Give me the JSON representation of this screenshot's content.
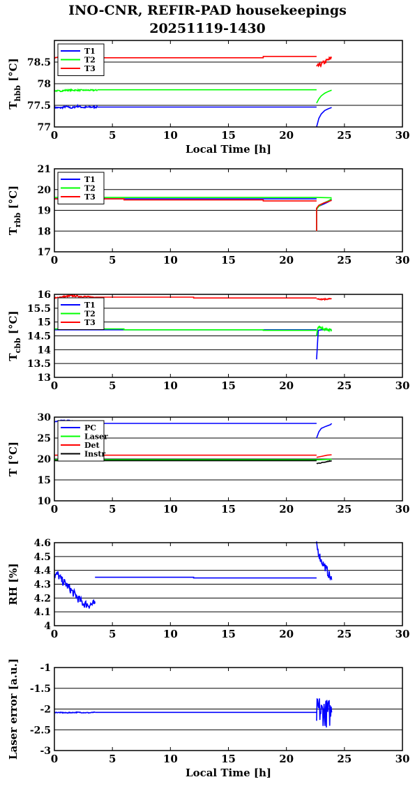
{
  "title_line1": "INO-CNR, REFIR-PAD housekeepings",
  "title_line2": "20251119-1430",
  "colors": {
    "blue": "#0000ff",
    "green": "#00ff00",
    "red": "#ff0000",
    "black": "#000000"
  },
  "chart_data": [
    {
      "type": "line",
      "xlabel": "Local Time [h]",
      "ylabel": "T_hbb [°C]",
      "ylabel_main": "T",
      "ylabel_sub": "hbb",
      "ylabel_unit": " [°C]",
      "xlim": [
        0,
        30
      ],
      "ylim": [
        77,
        79
      ],
      "xticks": [
        "0",
        "5",
        "10",
        "15",
        "20",
        "25",
        "30"
      ],
      "yticks": [
        "77",
        "77.5",
        "78",
        "78.5"
      ],
      "ytick_values": [
        77,
        77.5,
        78,
        78.5
      ],
      "grid": "horizontal",
      "legend": "top-left",
      "series": [
        {
          "name": "T1",
          "color": "#0000ff",
          "segments": [
            {
              "x": [
                0,
                0.5,
                1,
                1.5,
                2,
                2.5,
                3,
                3.5,
                3.7
              ],
              "y": [
                77.45,
                77.44,
                77.47,
                77.44,
                77.48,
                77.45,
                77.46,
                77.46,
                77.46
              ],
              "noise": 0.02
            },
            {
              "x": [
                3.7,
                22.6
              ],
              "y": [
                77.46,
                77.46
              ]
            },
            {
              "x": [
                22.6,
                22.8,
                23.0,
                23.3,
                23.6,
                23.9
              ],
              "y": [
                77.0,
                77.2,
                77.3,
                77.38,
                77.42,
                77.45
              ]
            }
          ]
        },
        {
          "name": "T2",
          "color": "#00ff00",
          "segments": [
            {
              "x": [
                0,
                0.5,
                1,
                2,
                3,
                3.7
              ],
              "y": [
                77.84,
                77.83,
                77.85,
                77.85,
                77.85,
                77.85
              ],
              "noise": 0.015
            },
            {
              "x": [
                3.7,
                22.6
              ],
              "y": [
                77.86,
                77.86
              ]
            },
            {
              "x": [
                22.6,
                22.8,
                23.0,
                23.3,
                23.6,
                23.9
              ],
              "y": [
                77.55,
                77.65,
                77.72,
                77.78,
                77.82,
                77.85
              ]
            }
          ]
        },
        {
          "name": "T3",
          "color": "#ff0000",
          "segments": [
            {
              "x": [
                0,
                1,
                2,
                3,
                3.7
              ],
              "y": [
                78.6,
                78.62,
                78.61,
                78.63,
                78.62
              ],
              "noise": 0.015
            },
            {
              "x": [
                3.7,
                18,
                18,
                22.6
              ],
              "y": [
                78.6,
                78.6,
                78.63,
                78.63
              ]
            },
            {
              "x": [
                22.6,
                22.8,
                23.0,
                23.3,
                23.6,
                23.9
              ],
              "y": [
                78.38,
                78.42,
                78.45,
                78.5,
                78.55,
                78.6
              ],
              "noise": 0.05
            }
          ]
        }
      ]
    },
    {
      "type": "line",
      "xlabel": "",
      "ylabel": "T_rbb [°C]",
      "ylabel_main": "T",
      "ylabel_sub": "rbb",
      "ylabel_unit": " [°C]",
      "xlim": [
        0,
        30
      ],
      "ylim": [
        17,
        21
      ],
      "xticks": [
        "0",
        "5",
        "10",
        "15",
        "20",
        "25",
        "30"
      ],
      "yticks": [
        "17",
        "18",
        "19",
        "20",
        "21"
      ],
      "ytick_values": [
        17,
        18,
        19,
        20,
        21
      ],
      "grid": "horizontal",
      "legend": "top-left",
      "series": [
        {
          "name": "T1",
          "color": "#0000ff",
          "segments": [
            {
              "x": [
                0,
                22.6
              ],
              "y": [
                19.55,
                19.55
              ]
            },
            {
              "x": [
                22.6,
                22.6,
                22.8,
                23.2,
                23.6,
                23.9
              ],
              "y": [
                18.0,
                19.1,
                19.2,
                19.3,
                19.4,
                19.5
              ]
            }
          ]
        },
        {
          "name": "T2",
          "color": "#00ff00",
          "segments": [
            {
              "x": [
                0,
                22.6,
                23.9
              ],
              "y": [
                19.62,
                19.62,
                19.6
              ]
            },
            {
              "x": [
                22.6,
                22.6,
                22.8,
                23.2,
                23.6,
                23.9
              ],
              "y": [
                18.0,
                19.05,
                19.2,
                19.35,
                19.45,
                19.55
              ]
            }
          ]
        },
        {
          "name": "T3",
          "color": "#ff0000",
          "segments": [
            {
              "x": [
                0,
                6,
                6,
                18,
                18,
                22.6
              ],
              "y": [
                19.55,
                19.55,
                19.5,
                19.5,
                19.45,
                19.45
              ]
            },
            {
              "x": [
                22.6,
                22.6,
                22.8,
                23.2,
                23.6,
                23.9
              ],
              "y": [
                18.0,
                19.1,
                19.25,
                19.35,
                19.42,
                19.48
              ]
            }
          ]
        }
      ]
    },
    {
      "type": "line",
      "xlabel": "",
      "ylabel": "T_cbb [°C]",
      "ylabel_main": "T",
      "ylabel_sub": "cbb",
      "ylabel_unit": " [°C]",
      "xlim": [
        0,
        30
      ],
      "ylim": [
        13,
        16
      ],
      "xticks": [
        "0",
        "5",
        "10",
        "15",
        "20",
        "25",
        "30"
      ],
      "yticks": [
        "13",
        "13.5",
        "14",
        "14.5",
        "15",
        "15.5",
        "16"
      ],
      "ytick_values": [
        13,
        13.5,
        14,
        14.5,
        15,
        15.5,
        16
      ],
      "grid": "horizontal",
      "legend": "top-left",
      "series": [
        {
          "name": "T1",
          "color": "#0000ff",
          "segments": [
            {
              "x": [
                0,
                22.6
              ],
              "y": [
                14.72,
                14.72
              ]
            },
            {
              "x": [
                22.6,
                22.7,
                22.75,
                23.0,
                23.5,
                23.9
              ],
              "y": [
                13.65,
                14.4,
                14.7,
                14.72,
                14.72,
                14.72
              ]
            }
          ]
        },
        {
          "name": "T2",
          "color": "#00ff00",
          "segments": [
            {
              "x": [
                0,
                6,
                6,
                12,
                12,
                18,
                18,
                22.6
              ],
              "y": [
                14.75,
                14.75,
                14.72,
                14.72,
                14.72,
                14.72,
                14.7,
                14.7
              ]
            },
            {
              "x": [
                22.6,
                22.7,
                22.8,
                23.2,
                23.6,
                23.9
              ],
              "y": [
                14.5,
                14.8,
                14.82,
                14.75,
                14.72,
                14.72
              ],
              "noise": 0.04
            }
          ]
        },
        {
          "name": "T3",
          "color": "#ff0000",
          "segments": [
            {
              "x": [
                0,
                0.5,
                1,
                1.5,
                2,
                2.5,
                3,
                3.5
              ],
              "y": [
                15.85,
                15.9,
                15.92,
                15.95,
                15.93,
                15.92,
                15.9,
                15.9
              ],
              "noise": 0.03
            },
            {
              "x": [
                3.5,
                12,
                12,
                22.6
              ],
              "y": [
                15.9,
                15.9,
                15.87,
                15.87
              ]
            },
            {
              "x": [
                22.6,
                23.0,
                23.5,
                23.9
              ],
              "y": [
                15.85,
                15.82,
                15.83,
                15.85
              ],
              "noise": 0.02
            }
          ]
        }
      ]
    },
    {
      "type": "line",
      "xlabel": "",
      "ylabel": "T [°C]",
      "ylabel_main": "T [°C]",
      "ylabel_sub": "",
      "ylabel_unit": "",
      "xlim": [
        0,
        30
      ],
      "ylim": [
        10,
        30
      ],
      "xticks": [
        "0",
        "5",
        "10",
        "15",
        "20",
        "25",
        "30"
      ],
      "yticks": [
        "10",
        "15",
        "20",
        "25",
        "30"
      ],
      "ytick_values": [
        10,
        15,
        20,
        25,
        30
      ],
      "grid": "horizontal",
      "legend": "top-left",
      "series": [
        {
          "name": "PC",
          "color": "#0000ff",
          "segments": [
            {
              "x": [
                0,
                0.5,
                1,
                1.5,
                2
              ],
              "y": [
                28.8,
                29.1,
                29.2,
                29.1,
                28.9
              ],
              "noise": 0.15
            },
            {
              "x": [
                2,
                22.6
              ],
              "y": [
                28.5,
                28.5
              ]
            },
            {
              "x": [
                22.6,
                22.8,
                23.0,
                23.4,
                23.8,
                23.9
              ],
              "y": [
                25.0,
                26.5,
                27.3,
                27.8,
                28.2,
                28.5
              ]
            }
          ]
        },
        {
          "name": "Laser",
          "color": "#00ff00",
          "segments": [
            {
              "x": [
                0,
                22.6,
                23.9
              ],
              "y": [
                19.8,
                19.8,
                19.9
              ]
            }
          ]
        },
        {
          "name": "Det",
          "color": "#ff0000",
          "segments": [
            {
              "x": [
                0,
                22.6
              ],
              "y": [
                20.9,
                20.9
              ]
            },
            {
              "x": [
                22.6,
                23.0,
                23.5,
                23.9
              ],
              "y": [
                20.4,
                20.6,
                20.9,
                21.0
              ]
            }
          ]
        },
        {
          "name": "Instr",
          "color": "#000000",
          "segments": [
            {
              "x": [
                0,
                22.6
              ],
              "y": [
                19.6,
                19.6
              ]
            },
            {
              "x": [
                22.6,
                23.0,
                23.5,
                23.9
              ],
              "y": [
                18.9,
                19.1,
                19.4,
                19.6
              ],
              "noise": 0.1
            }
          ]
        }
      ]
    },
    {
      "type": "line",
      "xlabel": "",
      "ylabel": "RH [%]",
      "ylabel_main": "RH [%]",
      "ylabel_sub": "",
      "ylabel_unit": "",
      "xlim": [
        0,
        30
      ],
      "ylim": [
        4,
        4.6
      ],
      "xticks": [
        "0",
        "5",
        "10",
        "15",
        "20",
        "25",
        "30"
      ],
      "yticks": [
        "4",
        "4.1",
        "4.2",
        "4.3",
        "4.4",
        "4.5",
        "4.6"
      ],
      "ytick_values": [
        4,
        4.1,
        4.2,
        4.3,
        4.4,
        4.5,
        4.6
      ],
      "grid": "horizontal",
      "legend": "none",
      "series": [
        {
          "name": "",
          "color": "#0000ff",
          "segments": [
            {
              "x": [
                0,
                0.3,
                0.6,
                1,
                1.5,
                2,
                2.5,
                3,
                3.5
              ],
              "y": [
                4.36,
                4.37,
                4.33,
                4.3,
                4.25,
                4.2,
                4.16,
                4.15,
                4.16
              ],
              "noise": 0.03
            },
            {
              "x": [
                3.5,
                12,
                12,
                22.6
              ],
              "y": [
                4.35,
                4.35,
                4.345,
                4.345
              ]
            },
            {
              "x": [
                22.6,
                22.8,
                23.0,
                23.3,
                23.6,
                23.9
              ],
              "y": [
                4.58,
                4.52,
                4.47,
                4.43,
                4.38,
                4.33
              ],
              "noise": 0.03
            }
          ]
        }
      ]
    },
    {
      "type": "line",
      "xlabel": "Local Time [h]",
      "ylabel": "Laser error [a.u.]",
      "ylabel_main": "Laser error [a.u.]",
      "ylabel_sub": "",
      "ylabel_unit": "",
      "xlim": [
        0,
        30
      ],
      "ylim": [
        -3,
        -1
      ],
      "xticks": [
        "0",
        "5",
        "10",
        "15",
        "20",
        "25",
        "30"
      ],
      "yticks": [
        "-3",
        "-2.5",
        "-2",
        "-1.5",
        "-1"
      ],
      "ytick_values": [
        -3,
        -2.5,
        -2,
        -1.5,
        -1
      ],
      "grid": "horizontal",
      "legend": "none",
      "series": [
        {
          "name": "",
          "color": "#0000ff",
          "segments": [
            {
              "x": [
                0,
                1,
                2,
                3,
                3.5
              ],
              "y": [
                -2.08,
                -2.09,
                -2.08,
                -2.09,
                -2.08
              ],
              "noise": 0.01
            },
            {
              "x": [
                3.5,
                22.6
              ],
              "y": [
                -2.08,
                -2.08
              ]
            },
            {
              "x": [
                22.6,
                22.8,
                23.0,
                23.2,
                23.4,
                23.6,
                23.9
              ],
              "y": [
                -2.1,
                -2.0,
                -2.1,
                -2.05,
                -2.1,
                -2.1,
                -2.08
              ],
              "noise": 0.35
            }
          ]
        }
      ]
    }
  ]
}
